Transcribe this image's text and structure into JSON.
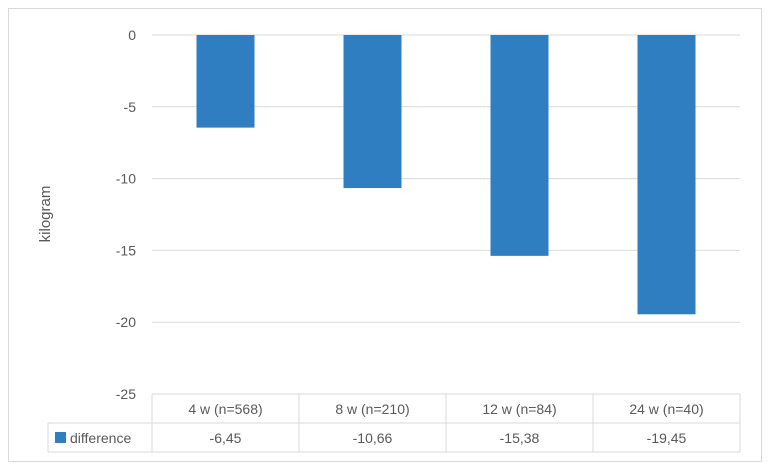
{
  "chart_data": {
    "type": "bar",
    "title": "",
    "xlabel": "",
    "ylabel": "kilogram",
    "ylim": [
      -25,
      0
    ],
    "yticks": [
      0,
      -5,
      -10,
      -15,
      -20,
      -25
    ],
    "grid": true,
    "categories": [
      "4 w (n=568)",
      "8 w (n=210)",
      "12 w (n=84)",
      "24 w (n=40)"
    ],
    "series": [
      {
        "name": "difference",
        "color": "#2e7ec1",
        "values": [
          -6.45,
          -10.66,
          -15.38,
          -19.45
        ],
        "labels": [
          "-6,45",
          "-10,66",
          "-15,38",
          "-19,45"
        ]
      }
    ],
    "legend": "data-table"
  }
}
